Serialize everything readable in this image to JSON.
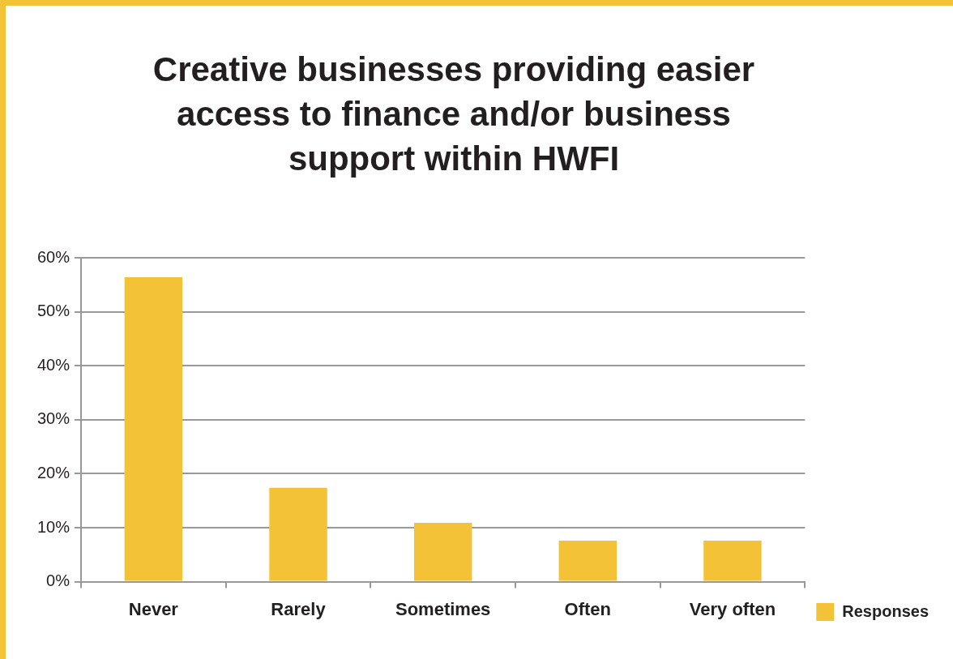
{
  "chart_data": {
    "type": "bar",
    "title": "Creative businesses providing easier access to finance and/or business support within HWFI",
    "categories": [
      "Never",
      "Rarely",
      "Sometimes",
      "Often",
      "Very often"
    ],
    "series": [
      {
        "name": "Responses",
        "color": "#f4c236",
        "values": [
          56.4,
          17.4,
          10.9,
          7.6,
          7.6
        ]
      }
    ],
    "ylim": [
      0,
      60
    ],
    "yticks": [
      {
        "value": 0,
        "label": "0%"
      },
      {
        "value": 10,
        "label": "10%"
      },
      {
        "value": 20,
        "label": "20%"
      },
      {
        "value": 30,
        "label": "30%"
      },
      {
        "value": 40,
        "label": "40%"
      },
      {
        "value": 50,
        "label": "50%"
      },
      {
        "value": 60,
        "label": "60%"
      }
    ],
    "grid": "y",
    "legend": "right"
  }
}
